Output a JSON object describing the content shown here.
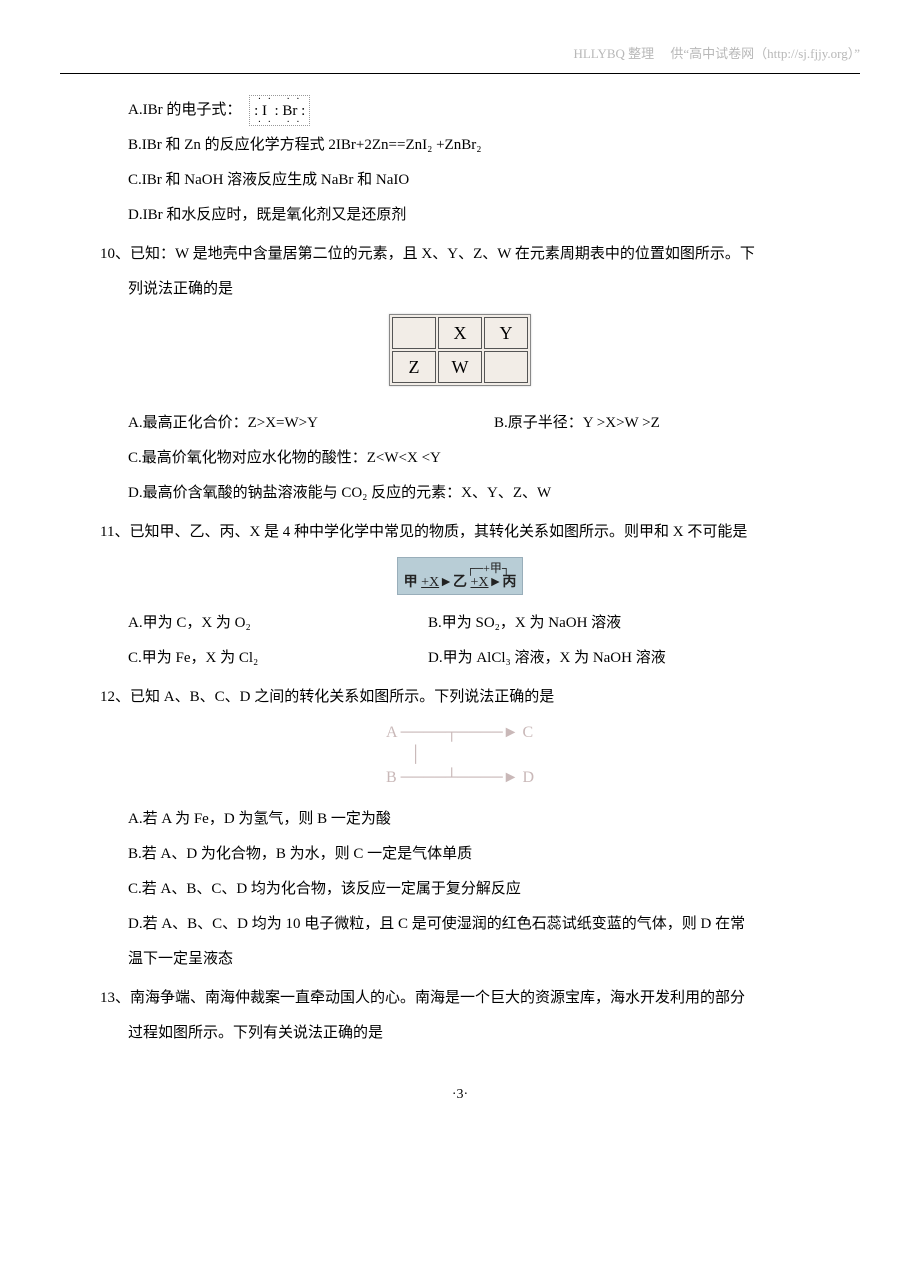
{
  "header": {
    "left": "HLLYBQ 整理",
    "right_prefix": "供“高中试卷网",
    "url": "（http://sj.fjjy.org）",
    "right_suffix": "”"
  },
  "q9": {
    "A_prefix": "A.IBr 的电子式：",
    "B": "B.IBr 和 Zn 的反应化学方程式 2IBr+2Zn==ZnI₂ +ZnBr₂",
    "C": "C.IBr 和 NaOH 溶液反应生成 NaBr 和 NaIO",
    "D": "D.IBr 和水反应时，既是氧化剂又是还原剂"
  },
  "q10": {
    "num": "10、",
    "stem1": "已知：W 是地壳中含量居第二位的元素，且 X、Y、Z、W 在元素周期表中的位置如图所示。下",
    "stem2": "列说法正确的是",
    "table": {
      "r1": [
        "",
        "X",
        "Y"
      ],
      "r2": [
        "Z",
        "W",
        ""
      ]
    },
    "A": "A.最高正化合价：Z>X=W>Y",
    "B": "B.原子半径：Y >X>W >Z",
    "C": "C.最高价氧化物对应水化物的酸性：Z<W<X <Y",
    "D": "D.最高价含氧酸的钠盐溶液能与 CO₂ 反应的元素：X、Y、Z、W"
  },
  "q11": {
    "num": "11、",
    "stem": "已知甲、乙、丙、X 是 4 种中学化学中常见的物质，其转化关系如图所示。则甲和 X 不可能是",
    "diagram": {
      "top": "+甲",
      "chain": "甲 +X→乙 +X→丙"
    },
    "A": "A.甲为 C，X 为 O₂",
    "B": "B.甲为 SO₂，X 为 NaOH 溶液",
    "C": "C.甲为 Fe，X 为 Cl₂",
    "D": "D.甲为 AlCl₃ 溶液，X 为 NaOH 溶液"
  },
  "q12": {
    "num": "12、",
    "stem": "已知 A、B、C、D 之间的转化关系如图所示。下列说法正确的是",
    "A": "A.若 A 为 Fe，D 为氢气，则 B 一定为酸",
    "B": "B.若 A、D 为化合物，B 为水，则 C 一定是气体单质",
    "C": "C.若 A、B、C、D 均为化合物，该反应一定属于复分解反应",
    "D1": "D.若 A、B、C、D 均为 10 电子微粒，且 C 是可使湿润的红色石蕊试纸变蓝的气体，则 D 在常",
    "D2": "温下一定呈液态"
  },
  "q13": {
    "num": "13、",
    "stem1": "南海争端、南海仲裁案一直牵动国人的心。南海是一个巨大的资源宝库，海水开发利用的部分",
    "stem2": "过程如图所示。下列有关说法正确的是"
  },
  "footer": "·3·"
}
